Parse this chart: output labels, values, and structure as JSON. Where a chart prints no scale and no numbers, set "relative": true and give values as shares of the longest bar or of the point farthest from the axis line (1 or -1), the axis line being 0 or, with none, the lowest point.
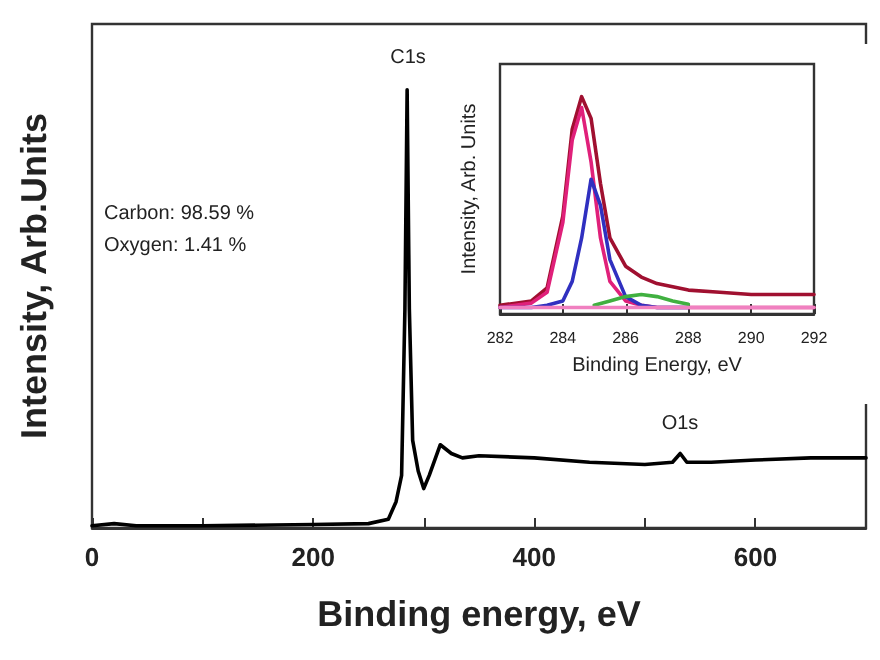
{
  "chart_data": [
    {
      "type": "line",
      "relative": true,
      "xlabel": "Binding energy, eV",
      "ylabel": "Intensity, Arb.Units",
      "xlim": [
        0,
        700
      ],
      "xticks": [
        0,
        {
          "value": 100,
          "label": null
        },
        200,
        {
          "value": 300,
          "label": null
        },
        400,
        {
          "value": 500,
          "label": null
        },
        600
      ],
      "marker": "none",
      "grid": false,
      "series": [
        {
          "color": "#000000",
          "x": [
            0,
            20,
            40,
            100,
            200,
            250,
            268,
            275,
            280,
            283,
            285,
            287,
            290,
            295,
            300,
            305,
            315,
            325,
            335,
            350,
            400,
            450,
            500,
            525,
            532,
            538,
            560,
            600,
            650,
            700
          ],
          "values": [
            0.005,
            0.01,
            0.005,
            0.005,
            0.008,
            0.01,
            0.02,
            0.06,
            0.12,
            0.5,
            1.0,
            0.5,
            0.2,
            0.13,
            0.09,
            0.12,
            0.19,
            0.17,
            0.16,
            0.165,
            0.16,
            0.15,
            0.145,
            0.15,
            0.17,
            0.15,
            0.15,
            0.155,
            0.16,
            0.16
          ]
        }
      ],
      "annotations": [
        "C1s",
        "O1s",
        "Carbon: 98.59 %",
        "Oxygen: 1.41 %"
      ]
    },
    {
      "type": "line",
      "relative": true,
      "xlabel": "Binding Energy, eV",
      "ylabel": "Intensity, Arb. Units",
      "xlim": [
        282,
        292
      ],
      "xticks": [
        282,
        284,
        286,
        288,
        290,
        292
      ],
      "marker": "none",
      "grid": false,
      "series": [
        {
          "color": "#a01030",
          "x": [
            282,
            283,
            283.5,
            284,
            284.3,
            284.6,
            284.9,
            285.2,
            285.5,
            286,
            286.5,
            287,
            288,
            289,
            290,
            291,
            292
          ],
          "values": [
            0.04,
            0.06,
            0.12,
            0.45,
            0.85,
            1.0,
            0.9,
            0.6,
            0.35,
            0.22,
            0.17,
            0.14,
            0.11,
            0.1,
            0.09,
            0.09,
            0.09
          ]
        },
        {
          "color": "#e0207a",
          "x": [
            282,
            283,
            283.5,
            284,
            284.3,
            284.6,
            284.9,
            285.2,
            285.5,
            286,
            286.5,
            287,
            288,
            289,
            290,
            291,
            292
          ],
          "values": [
            0.03,
            0.05,
            0.1,
            0.42,
            0.8,
            0.95,
            0.7,
            0.35,
            0.15,
            0.06,
            0.04,
            0.03,
            0.03,
            0.03,
            0.03,
            0.03,
            0.03
          ]
        },
        {
          "color": "#3030c0",
          "x": [
            282,
            283,
            283.5,
            284,
            284.3,
            284.6,
            284.9,
            285.2,
            285.5,
            286,
            286.5,
            287,
            288
          ],
          "values": [
            0.03,
            0.03,
            0.04,
            0.06,
            0.15,
            0.35,
            0.62,
            0.5,
            0.25,
            0.08,
            0.04,
            0.03,
            0.03
          ]
        },
        {
          "color": "#40b040",
          "x": [
            285,
            285.5,
            286,
            286.5,
            287,
            287.5,
            288
          ],
          "values": [
            0.04,
            0.06,
            0.08,
            0.09,
            0.08,
            0.06,
            0.045
          ]
        },
        {
          "color": "#f080c0",
          "x": [
            282,
            284,
            286,
            288,
            290,
            292
          ],
          "values": [
            0.03,
            0.03,
            0.03,
            0.03,
            0.03,
            0.03
          ]
        }
      ]
    }
  ]
}
